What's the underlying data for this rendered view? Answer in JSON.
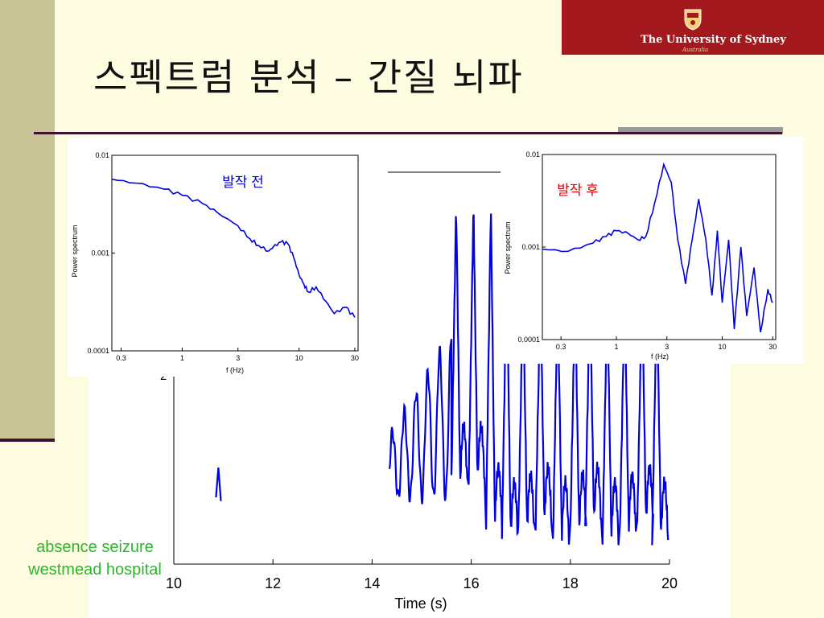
{
  "slide": {
    "title": "스펙트럼 분석 – 간질 뇌파",
    "logo": {
      "name": "The University of Sydney",
      "sub": "Australia"
    },
    "source_line1": "absence seizure",
    "source_line2": "westmead hospital"
  },
  "colors": {
    "trace": "#0000e0",
    "label_before": "#0000cc",
    "label_after": "#e00000",
    "source": "#2db52d"
  },
  "chart_data": [
    {
      "type": "line",
      "title": "",
      "xlabel": "Time (s)",
      "ylabel": "",
      "xlim": [
        10,
        20
      ],
      "xticks": [
        "10",
        "12",
        "14",
        "16",
        "18",
        "20"
      ],
      "partial_ytick": "2",
      "series": [
        {
          "description_visible": "EEG trace",
          "x": [
            10.9,
            14.4,
            15.0,
            15.5,
            15.8,
            16.1,
            16.4,
            16.6,
            17.0,
            17.4,
            18.0,
            18.6,
            19.2,
            19.9
          ],
          "y_rel": [
            0.2,
            0.15,
            0.35,
            0.55,
            0.95,
            0.95,
            0.8,
            0.05,
            0.7,
            0.72,
            0.0,
            0.68,
            0.66,
            0.65
          ]
        }
      ]
    },
    {
      "type": "line",
      "title": "발작 전",
      "xlabel": "f (Hz)",
      "ylabel": "Power spectrum",
      "xscale": "log",
      "yscale": "log",
      "xlim": [
        0.25,
        32
      ],
      "ylim": [
        0.0001,
        0.01
      ],
      "xticks": [
        "0.3",
        "1",
        "3",
        "10",
        "30"
      ],
      "yticks": [
        "0.01",
        "0.001",
        "0.0001"
      ],
      "series": [
        {
          "x": [
            0.25,
            0.4,
            0.7,
            1.0,
            1.5,
            2.0,
            3.0,
            3.8,
            4.5,
            5.5,
            6.0,
            7.0,
            8.0,
            9.0,
            10.0,
            11.0,
            12.0,
            14.0,
            17.0,
            20.0,
            25.0,
            30.0
          ],
          "y": [
            0.0057,
            0.0052,
            0.0045,
            0.0039,
            0.0032,
            0.0026,
            0.0019,
            0.0014,
            0.0012,
            0.00105,
            0.00115,
            0.0013,
            0.00125,
            0.0009,
            0.0006,
            0.00048,
            0.0004,
            0.00045,
            0.00032,
            0.00024,
            0.00028,
            0.00022
          ]
        }
      ]
    },
    {
      "type": "line",
      "title": "발작 후",
      "xlabel": "f (Hz)",
      "ylabel": "Power spectrum",
      "xscale": "log",
      "yscale": "log",
      "xlim": [
        0.2,
        32
      ],
      "ylim": [
        0.0001,
        0.01
      ],
      "xticks": [
        "0.3",
        "1",
        "3",
        "10",
        "30"
      ],
      "yticks": [
        "0.01",
        "0.001",
        "0.0001"
      ],
      "series": [
        {
          "x": [
            0.2,
            0.35,
            0.6,
            0.8,
            1.0,
            1.3,
            1.6,
            1.9,
            2.3,
            2.8,
            3.3,
            3.8,
            4.5,
            5.2,
            6.0,
            7.0,
            8.0,
            9.0,
            10.0,
            11.5,
            13.0,
            15.0,
            17.0,
            20.0,
            23.0,
            27.0,
            30.0
          ],
          "y": [
            0.00095,
            0.0009,
            0.0011,
            0.0013,
            0.0015,
            0.0014,
            0.0012,
            0.0013,
            0.003,
            0.0078,
            0.005,
            0.0012,
            0.0004,
            0.0012,
            0.0033,
            0.0012,
            0.0003,
            0.0015,
            0.00025,
            0.0012,
            0.00013,
            0.001,
            0.00018,
            0.0006,
            0.00012,
            0.00035,
            0.00025
          ]
        }
      ]
    }
  ]
}
